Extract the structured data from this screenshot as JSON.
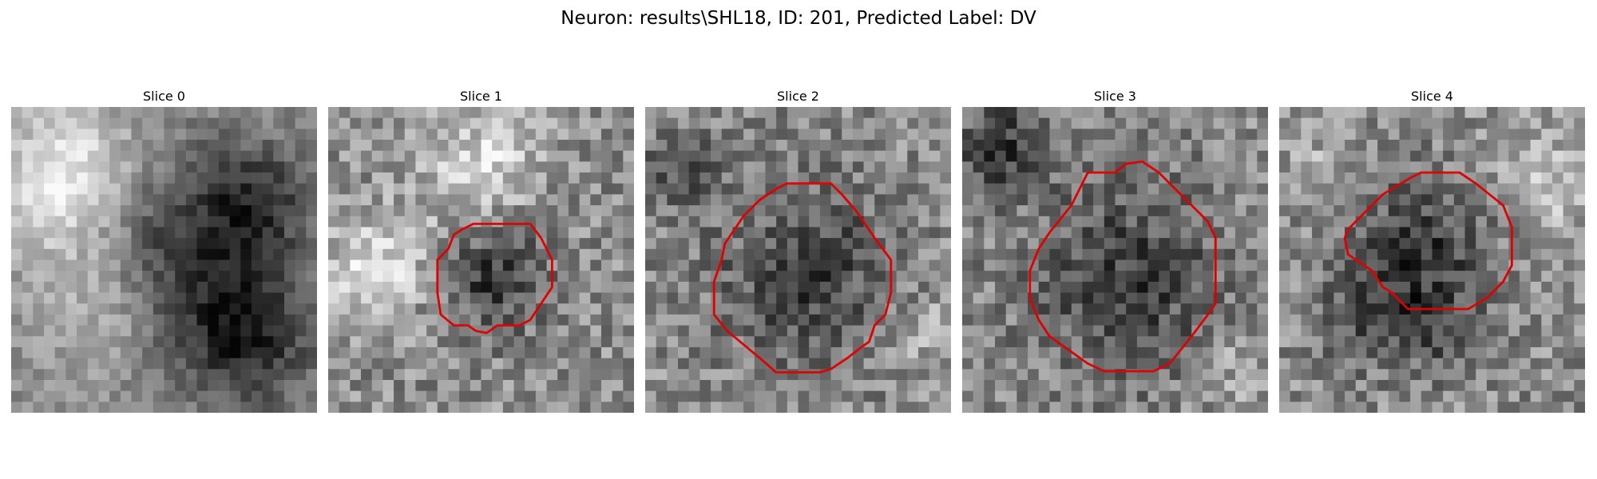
{
  "title": "Neuron: results\\SHL18, ID: 201, Predicted Label: DV",
  "contour_color": "#e00000",
  "panels": [
    {
      "title": "Slice 0",
      "has_contour": false
    },
    {
      "title": "Slice 1",
      "has_contour": true
    },
    {
      "title": "Slice 2",
      "has_contour": true
    },
    {
      "title": "Slice 3",
      "has_contour": true
    },
    {
      "title": "Slice 4",
      "has_contour": true
    }
  ]
}
